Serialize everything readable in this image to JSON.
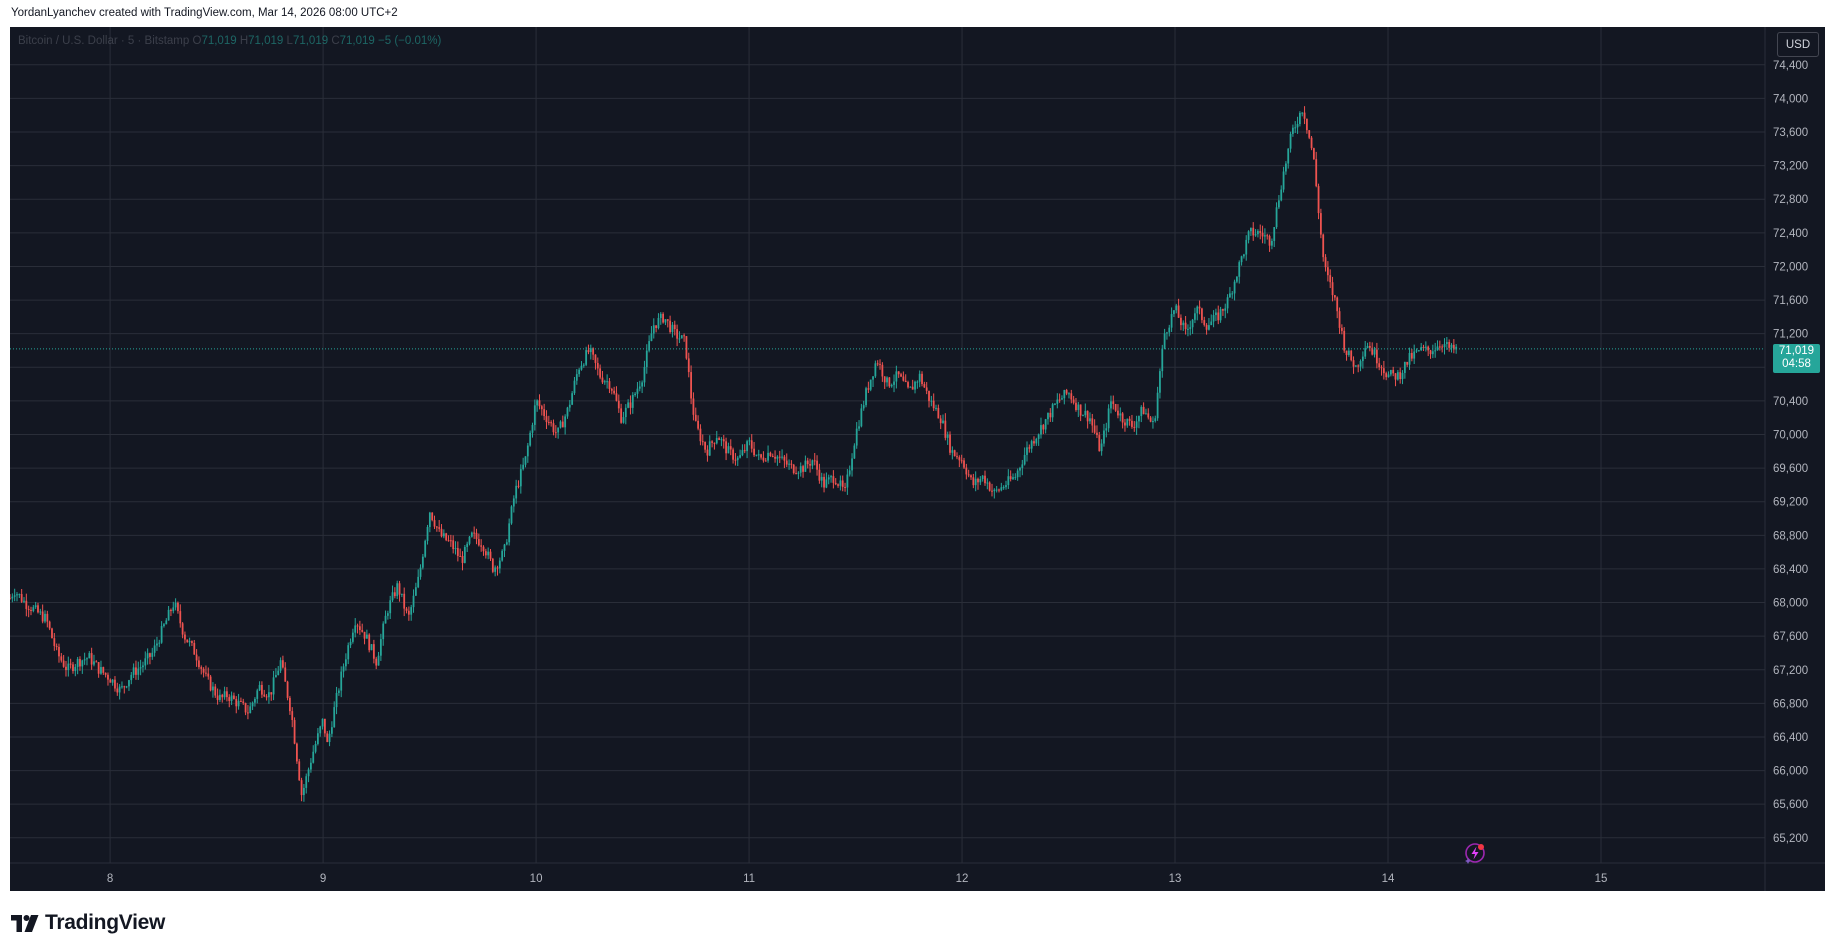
{
  "header": {
    "credit": "YordanLyanchev created with TradingView.com, Mar 14, 2026 08:00 UTC+2"
  },
  "legend": {
    "symbol": "Bitcoin / U.S. Dollar · 5 · Bitstamp",
    "o_label": "O",
    "o_value": "71,019",
    "h_label": "H",
    "h_value": "71,019",
    "l_label": "L",
    "l_value": "71,019",
    "c_label": "C",
    "c_value": "71,019",
    "change": "−5 (−0.01%)"
  },
  "toolbar": {
    "currency_label": "USD"
  },
  "last_price": {
    "price": "71,019",
    "countdown": "04:58"
  },
  "brand": {
    "name": "TradingView"
  },
  "colors": {
    "background": "#131722",
    "grid": "#2a2e39",
    "up": "#26a69a",
    "down": "#ef5350",
    "axis_text": "#b2b5be",
    "brand_dark": "#131722"
  },
  "icons": {
    "brand_logo": "tradingview-logo-icon",
    "lightning": "lightning-icon"
  },
  "chart_data": {
    "type": "candlestick",
    "title": "",
    "xlabel": "",
    "ylabel": "",
    "interval": "5 minutes",
    "grid": true,
    "ylim": [
      64900,
      74850
    ],
    "xlim": [
      7.53,
      15.77
    ],
    "y_ticks": [
      "74,400",
      "74,000",
      "73,600",
      "73,200",
      "72,800",
      "72,400",
      "72,000",
      "71,600",
      "71,200",
      "70,800",
      "70,400",
      "70,000",
      "69,600",
      "69,200",
      "68,800",
      "68,400",
      "68,000",
      "67,600",
      "67,200",
      "66,800",
      "66,400",
      "66,000",
      "65,600",
      "65,200"
    ],
    "x_ticks": [
      "8",
      "9",
      "10",
      "11",
      "12",
      "13",
      "14",
      "15"
    ],
    "last_price_value": 71019,
    "path_day": [
      7.53,
      7.55,
      7.6,
      7.65,
      7.7,
      7.75,
      7.8,
      7.85,
      7.9,
      7.95,
      8.0,
      8.05,
      8.1,
      8.15,
      8.2,
      8.25,
      8.3,
      8.35,
      8.4,
      8.45,
      8.5,
      8.52,
      8.55,
      8.6,
      8.65,
      8.7,
      8.75,
      8.8,
      8.85,
      8.9,
      8.95,
      9.0,
      9.02,
      9.05,
      9.1,
      9.15,
      9.2,
      9.25,
      9.3,
      9.35,
      9.4,
      9.45,
      9.5,
      9.55,
      9.6,
      9.65,
      9.7,
      9.75,
      9.8,
      9.85,
      9.9,
      9.95,
      10.0,
      10.05,
      10.1,
      10.15,
      10.2,
      10.25,
      10.3,
      10.35,
      10.4,
      10.45,
      10.5,
      10.55,
      10.6,
      10.65,
      10.7,
      10.73,
      10.75,
      10.8,
      10.85,
      10.9,
      10.95,
      11.0,
      11.05,
      11.1,
      11.15,
      11.2,
      11.25,
      11.3,
      11.35,
      11.4,
      11.45,
      11.5,
      11.55,
      11.6,
      11.65,
      11.7,
      11.75,
      11.8,
      11.85,
      11.9,
      11.95,
      12.0,
      12.05,
      12.1,
      12.15,
      12.2,
      12.25,
      12.3,
      12.35,
      12.4,
      12.45,
      12.5,
      12.55,
      12.6,
      12.65,
      12.7,
      12.75,
      12.8,
      12.85,
      12.9,
      12.95,
      13.0,
      13.05,
      13.1,
      13.15,
      13.2,
      13.25,
      13.3,
      13.35,
      13.4,
      13.45,
      13.5,
      13.55,
      13.6,
      13.65,
      13.68,
      13.7,
      13.75,
      13.8,
      13.85,
      13.9,
      13.95,
      14.0,
      14.05,
      14.1,
      14.15,
      14.2,
      14.25,
      14.3,
      14.32
    ],
    "path_price": [
      68050,
      68150,
      68000,
      67900,
      67800,
      67400,
      67200,
      67300,
      67350,
      67200,
      67100,
      66950,
      67150,
      67250,
      67400,
      67700,
      68000,
      67600,
      67400,
      67100,
      66900,
      66850,
      66900,
      66800,
      66700,
      67000,
      66900,
      67300,
      66700,
      65700,
      66200,
      66600,
      66300,
      66700,
      67300,
      67800,
      67600,
      67300,
      67900,
      68200,
      67800,
      68300,
      69100,
      68800,
      68700,
      68500,
      68800,
      68700,
      68400,
      68600,
      69300,
      69700,
      70400,
      70200,
      70000,
      70300,
      70800,
      71000,
      70700,
      70600,
      70200,
      70400,
      70700,
      71300,
      71400,
      71200,
      71100,
      70400,
      70100,
      69800,
      70000,
      69800,
      69700,
      69900,
      69700,
      69800,
      69700,
      69600,
      69600,
      69700,
      69400,
      69500,
      69300,
      70000,
      70500,
      70900,
      70600,
      70700,
      70500,
      70700,
      70400,
      70200,
      69800,
      69700,
      69400,
      69500,
      69300,
      69400,
      69500,
      69800,
      70000,
      70200,
      70400,
      70500,
      70300,
      70200,
      69800,
      70400,
      70200,
      70100,
      70300,
      70100,
      71200,
      71500,
      71200,
      71500,
      71300,
      71400,
      71600,
      72000,
      72400,
      72400,
      72300,
      73000,
      73600,
      73900,
      73300,
      72500,
      72000,
      71600,
      71000,
      70800,
      71100,
      70900,
      70700,
      70700,
      70900,
      71000,
      71000,
      71100,
      71000,
      71019
    ]
  }
}
